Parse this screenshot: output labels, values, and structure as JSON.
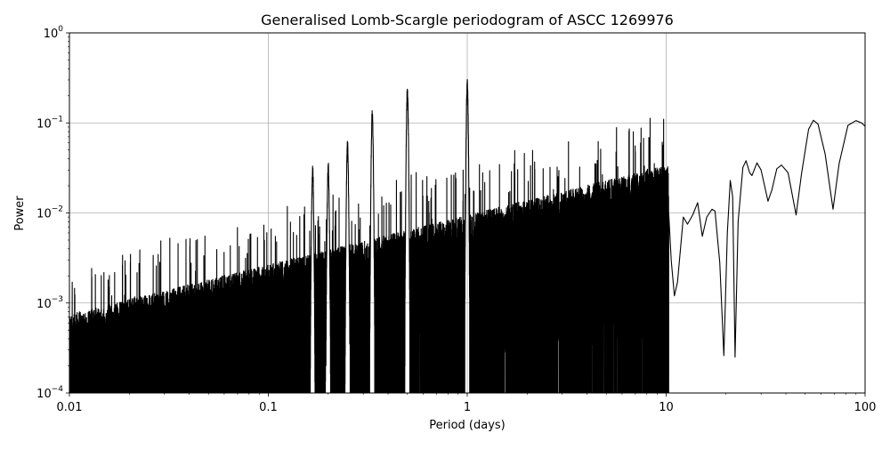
{
  "chart_data": {
    "type": "line",
    "title": "Generalised Lomb-Scargle periodogram of ASCC 1269976",
    "xlabel": "Period (days)",
    "ylabel": "Power",
    "xscale": "log",
    "yscale": "log",
    "xlim": [
      0.01,
      100
    ],
    "ylim": [
      0.0001,
      1
    ],
    "grid": "major",
    "line_color": "#000000",
    "x_ticks": [
      {
        "value": 0.01,
        "label": "0.01"
      },
      {
        "value": 0.1,
        "label": "0.1"
      },
      {
        "value": 1,
        "label": "1"
      },
      {
        "value": 10,
        "label": "10"
      },
      {
        "value": 100,
        "label": "100"
      }
    ],
    "y_ticks": [
      {
        "value": 0.0001,
        "base": "10",
        "exp": "−4"
      },
      {
        "value": 0.001,
        "base": "10",
        "exp": "−3"
      },
      {
        "value": 0.01,
        "base": "10",
        "exp": "−2"
      },
      {
        "value": 0.1,
        "base": "10",
        "exp": "−1"
      },
      {
        "value": 1,
        "base": "10",
        "exp": "0"
      }
    ],
    "peaks": [
      {
        "period": 1.0,
        "power": 0.31
      },
      {
        "period": 0.5,
        "power": 0.26
      },
      {
        "period": 0.333,
        "power": 0.15
      },
      {
        "period": 0.25,
        "power": 0.065
      },
      {
        "period": 0.2,
        "power": 0.038
      },
      {
        "period": 0.167,
        "power": 0.035
      }
    ],
    "smooth_points": [
      [
        10.3,
        0.01
      ],
      [
        10.6,
        0.003
      ],
      [
        11.0,
        0.0012
      ],
      [
        11.4,
        0.0017
      ],
      [
        12.2,
        0.009
      ],
      [
        12.8,
        0.0075
      ],
      [
        13.6,
        0.0095
      ],
      [
        14.4,
        0.013
      ],
      [
        15.2,
        0.0055
      ],
      [
        16.0,
        0.009
      ],
      [
        17.0,
        0.011
      ],
      [
        17.6,
        0.0105
      ],
      [
        18.6,
        0.0028
      ],
      [
        19.5,
        0.00026
      ],
      [
        20.3,
        0.006
      ],
      [
        21.0,
        0.023
      ],
      [
        21.6,
        0.015
      ],
      [
        22.2,
        0.00025
      ],
      [
        23.0,
        0.008
      ],
      [
        24.3,
        0.032
      ],
      [
        25.2,
        0.038
      ],
      [
        26.3,
        0.028
      ],
      [
        27.0,
        0.026
      ],
      [
        28.6,
        0.036
      ],
      [
        30.0,
        0.03
      ],
      [
        32.5,
        0.0135
      ],
      [
        34.0,
        0.018
      ],
      [
        36.0,
        0.031
      ],
      [
        38.0,
        0.034
      ],
      [
        41.0,
        0.028
      ],
      [
        45.0,
        0.0095
      ],
      [
        48.0,
        0.028
      ],
      [
        52.0,
        0.085
      ],
      [
        55.0,
        0.107
      ],
      [
        58.0,
        0.097
      ],
      [
        63.0,
        0.045
      ],
      [
        69.0,
        0.011
      ],
      [
        74.0,
        0.035
      ],
      [
        82.0,
        0.094
      ],
      [
        90.0,
        0.106
      ],
      [
        96.0,
        0.1
      ],
      [
        100.0,
        0.092
      ]
    ]
  }
}
